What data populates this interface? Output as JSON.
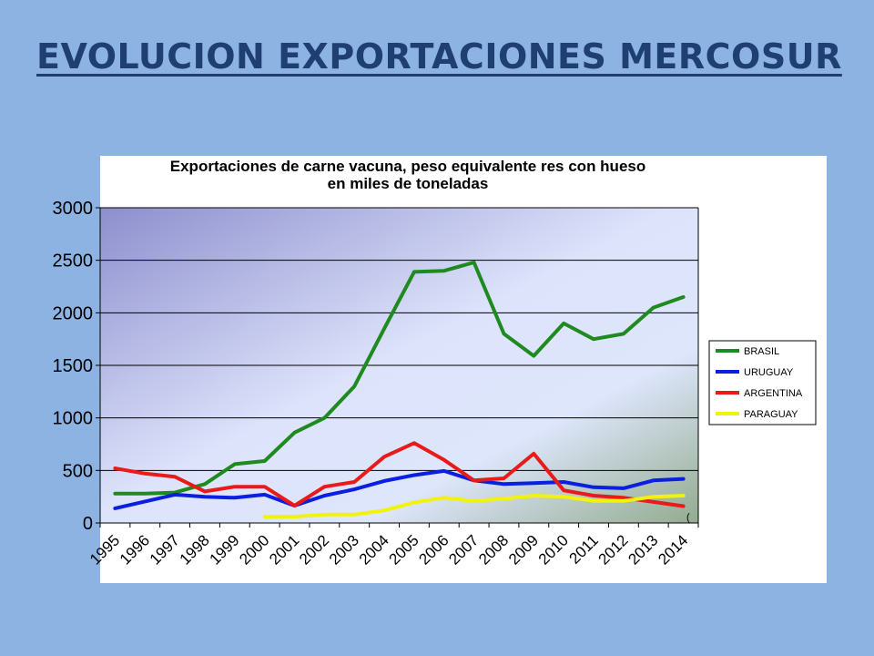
{
  "slide": {
    "title": "EVOLUCION EXPORTACIONES MERCOSUR"
  },
  "chart_data": {
    "type": "line",
    "title_lines": [
      "Exportaciones de carne vacuna, peso equivalente res con hueso",
      "en miles de toneladas"
    ],
    "categories": [
      "1995",
      "1996",
      "1997",
      "1998",
      "1999",
      "2000",
      "2001",
      "2002",
      "2003",
      "2004",
      "2005",
      "2006",
      "2007",
      "2008",
      "2009",
      "2010",
      "2011",
      "2012",
      "2013",
      "2014"
    ],
    "ylim": [
      0,
      3000
    ],
    "yticks": [
      0,
      500,
      1000,
      1500,
      2000,
      2500,
      3000
    ],
    "grid": true,
    "legend_position": "right",
    "series": [
      {
        "name": "BRASIL",
        "color": "#1f8a1f",
        "values": [
          280,
          280,
          290,
          370,
          560,
          590,
          860,
          1000,
          1300,
          1850,
          2390,
          2400,
          2480,
          1800,
          1590,
          1900,
          1750,
          1800,
          2050,
          2150
        ]
      },
      {
        "name": "URUGUAY",
        "color": "#0a1fe0",
        "values": [
          140,
          205,
          270,
          250,
          240,
          270,
          165,
          260,
          320,
          400,
          455,
          495,
          405,
          370,
          380,
          390,
          340,
          330,
          405,
          420
        ]
      },
      {
        "name": "ARGENTINA",
        "color": "#e81a1a",
        "values": [
          520,
          470,
          440,
          300,
          345,
          345,
          165,
          345,
          390,
          630,
          760,
          600,
          405,
          425,
          660,
          310,
          260,
          240,
          200,
          160
        ]
      },
      {
        "name": "PARAGUAY",
        "color": "#f2f20f",
        "values": [
          null,
          null,
          null,
          null,
          null,
          60,
          60,
          80,
          80,
          120,
          195,
          240,
          210,
          230,
          260,
          250,
          210,
          210,
          250,
          260
        ]
      }
    ],
    "annotation": "("
  }
}
